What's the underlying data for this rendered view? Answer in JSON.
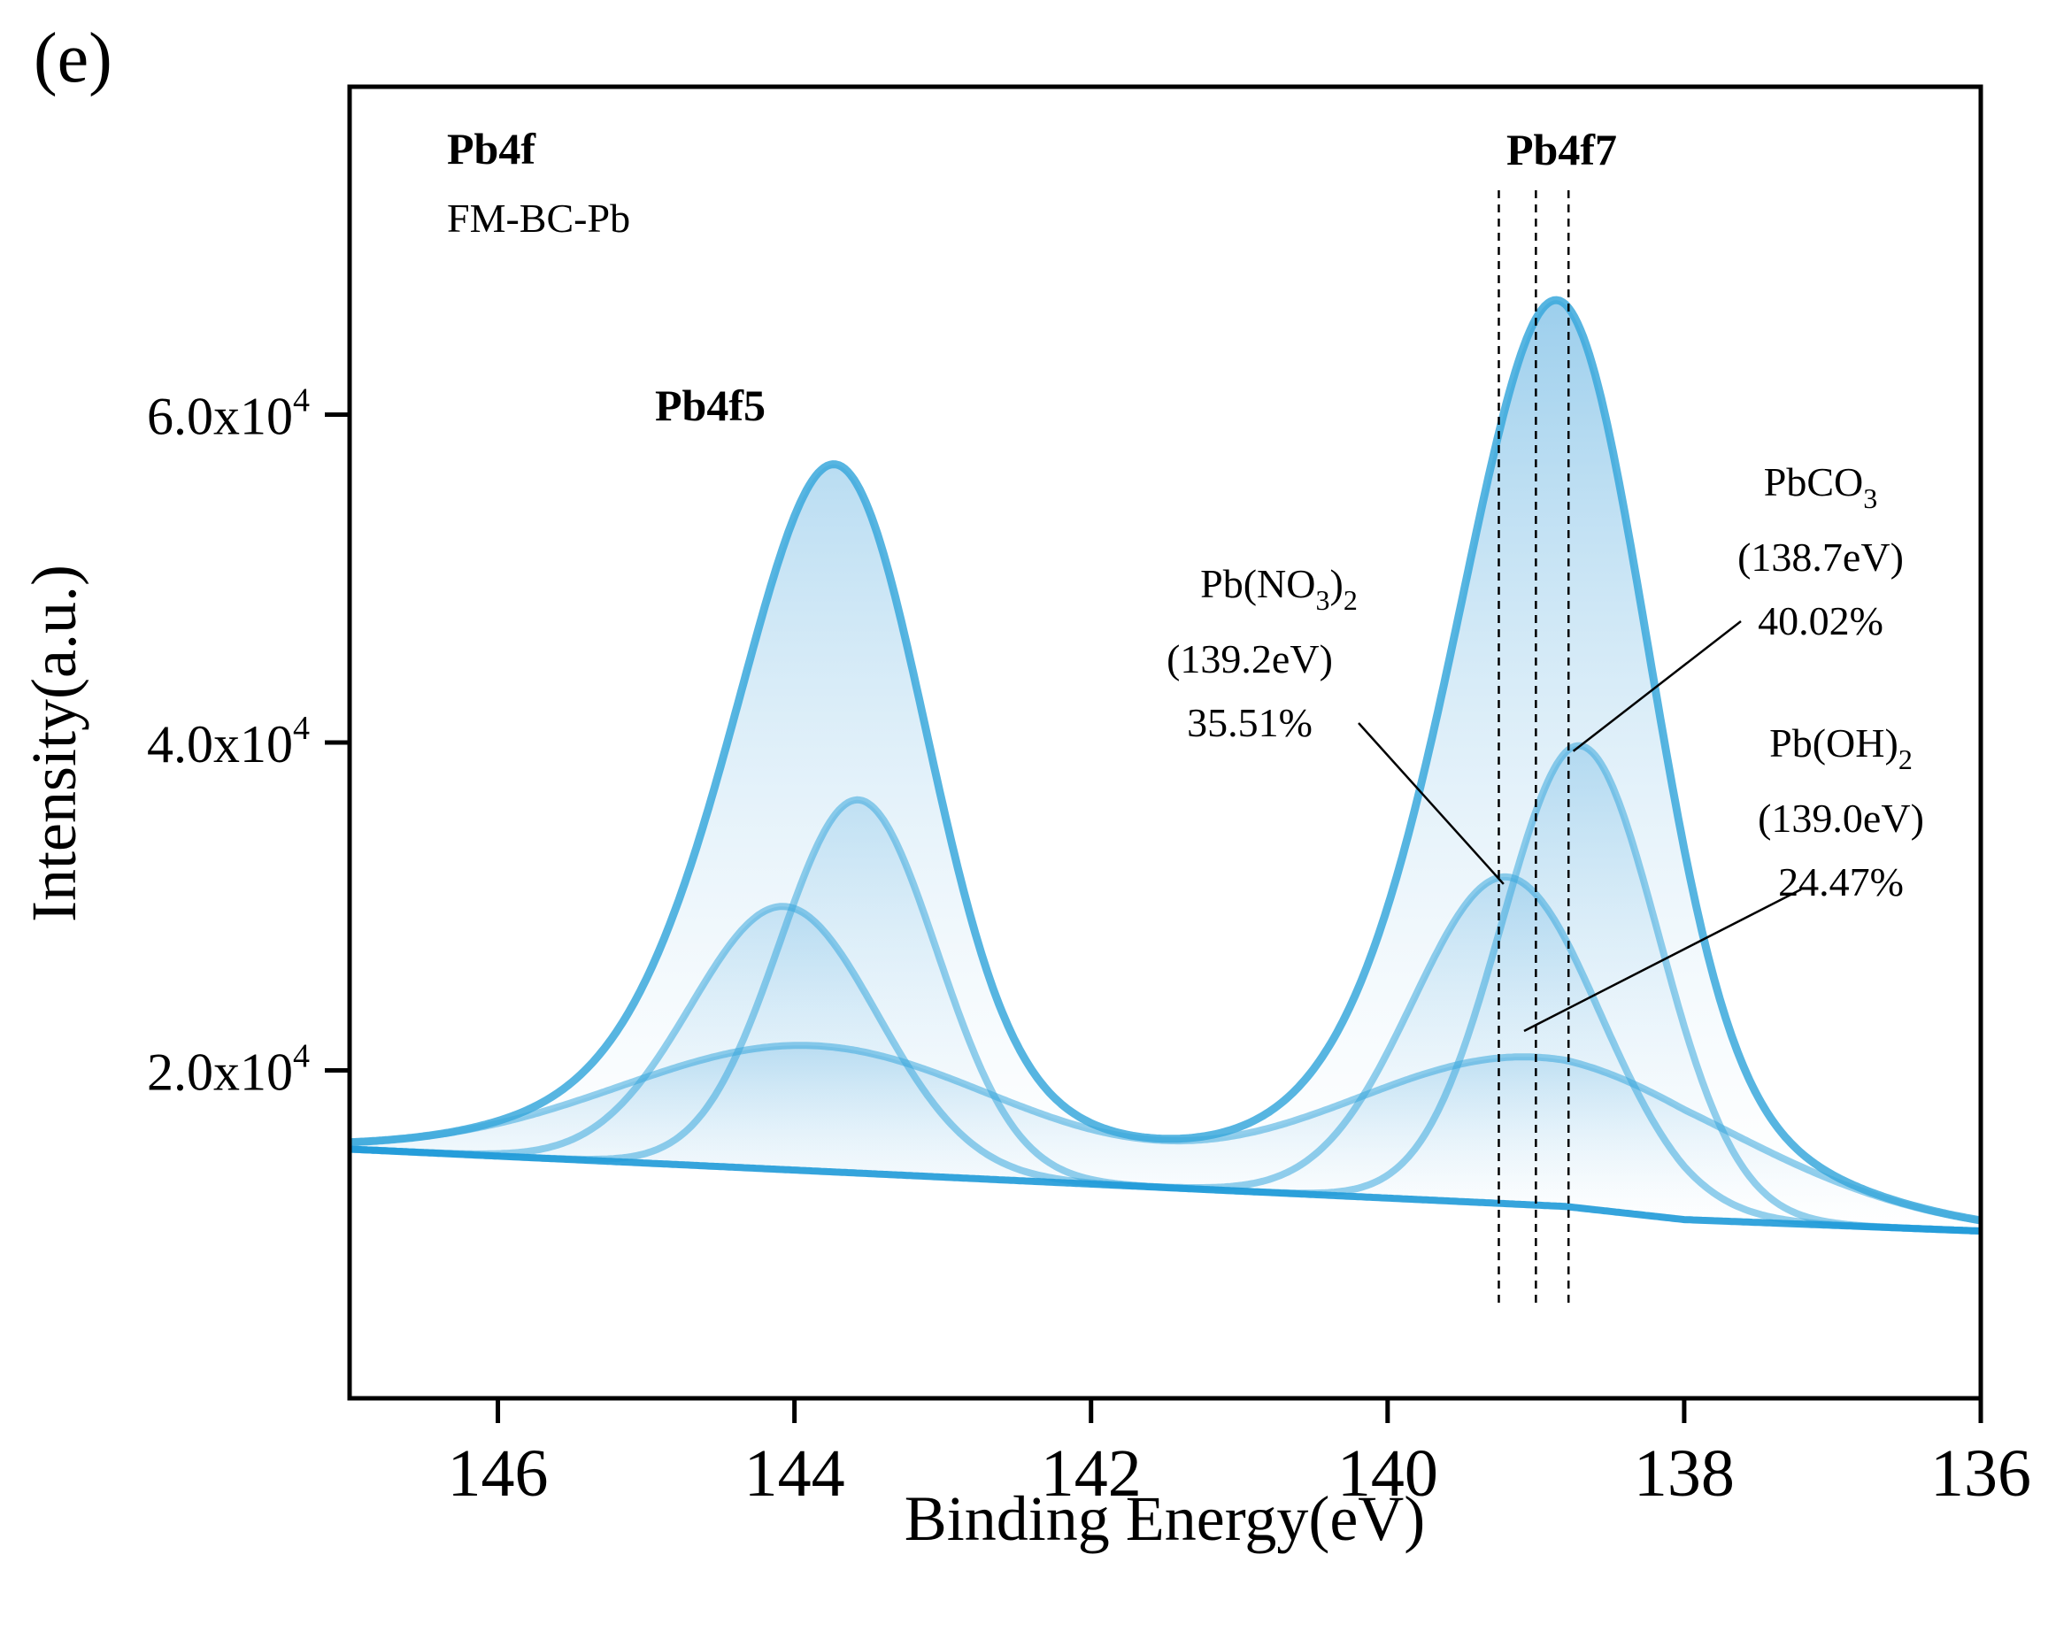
{
  "panel_label": "(e)",
  "colors": {
    "line": "#3aa8dc",
    "baseline": "#1f9ad8",
    "fill_top": "#5aaee0",
    "fill_bottom": "#ffffff",
    "frame": "#000000"
  },
  "chart_data": {
    "type": "line",
    "xlabel": "Binding Energy(eV)",
    "ylabel": "Intensity(a.u.)",
    "xlim": [
      147,
      136
    ],
    "x_reversed": true,
    "ylim": [
      0,
      80000
    ],
    "x_ticks": [
      146,
      144,
      142,
      140,
      138,
      136
    ],
    "y_ticks": [
      {
        "value": 20000,
        "mantissa": "2.0x10",
        "exponent": "4"
      },
      {
        "value": 40000,
        "mantissa": "4.0x10",
        "exponent": "4"
      },
      {
        "value": 60000,
        "mantissa": "6.0x10",
        "exponent": "4"
      }
    ],
    "grid": false,
    "baseline": {
      "x": [
        147,
        138.8,
        138,
        136
      ],
      "y": [
        15200,
        11700,
        10900,
        10200
      ]
    },
    "components": [
      {
        "label": "Pb(NO3)2",
        "center_eV": 139.2,
        "percent": 35.51,
        "peak_f7": 31800,
        "peak_f5": 30000,
        "width": 0.63
      },
      {
        "label": "Pb(OH)2",
        "center_eV": 139.0,
        "percent": 24.47,
        "peak_f7": 20800,
        "peak_f5": 21500,
        "width": 1.3
      },
      {
        "label": "PbCO3",
        "center_eV": 138.7,
        "percent": 40.02,
        "peak_f7": 39800,
        "peak_f5": 36500,
        "width": 0.53
      }
    ],
    "envelope_peaks": {
      "f7": 67000,
      "f5": 57000
    },
    "spin_orbit_split_eV": 4.87,
    "marker_lines_eV": [
      139.25,
      139.0,
      138.78
    ],
    "texts": {
      "region": "Pb4f",
      "sample": "FM-BC-Pb",
      "f7_label": "Pb4f7",
      "f5_label": "Pb4f5"
    },
    "annotations": [
      {
        "id": "no3",
        "name_pre": "Pb(NO",
        "sub1": "3",
        "name_mid": ")",
        "sub2": "2",
        "energy": "(139.2eV)",
        "percent": "35.51%"
      },
      {
        "id": "co3",
        "name_pre": "PbCO",
        "sub1": "3",
        "energy": "(138.7eV)",
        "percent": "40.02%"
      },
      {
        "id": "oh",
        "name_pre": "Pb(OH)",
        "sub1": "2",
        "energy": "(139.0eV)",
        "percent": "24.47%"
      }
    ]
  }
}
